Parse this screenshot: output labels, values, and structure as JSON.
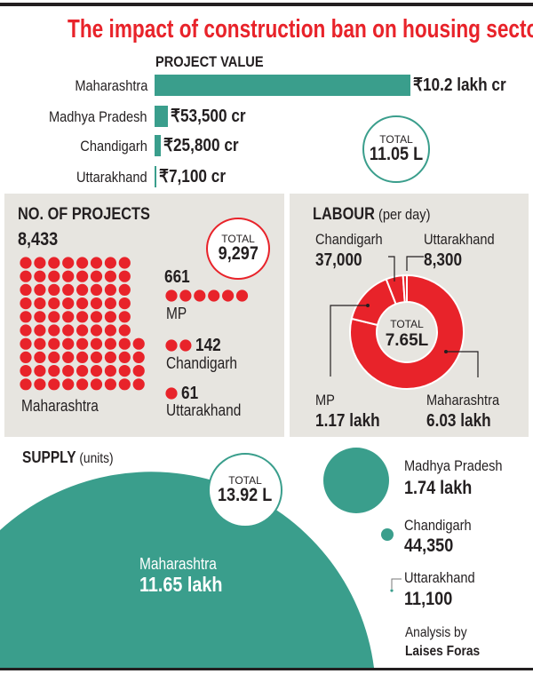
{
  "title": "The impact of construction ban on housing sector",
  "colors": {
    "title_red": "#e8232a",
    "teal": "#3a9e8c",
    "dot_red": "#e8232a",
    "panel_gray": "#e7e5e0"
  },
  "project_value": {
    "heading": "PROJECT VALUE",
    "rows": [
      {
        "state": "Maharashtra",
        "label": "₹10.2 lakh cr"
      },
      {
        "state": "Madhya Pradesh",
        "label": "₹53,500 cr"
      },
      {
        "state": "Chandigarh",
        "label": "₹25,800 cr"
      },
      {
        "state": "Uttarakhand",
        "label": "₹7,100 cr"
      }
    ],
    "total_label": "TOTAL",
    "total_value": "11.05 L"
  },
  "projects": {
    "heading": "NO. OF PROJECTS",
    "total_label": "TOTAL",
    "total_value": "9,297",
    "maharashtra": {
      "name": "Maharashtra",
      "value": "8,433"
    },
    "mp": {
      "name": "MP",
      "value": "661"
    },
    "chandigarh": {
      "name": "Chandigarh",
      "value": "142"
    },
    "uttarakhand": {
      "name": "Uttarakhand",
      "value": "61"
    }
  },
  "labour": {
    "heading": "LABOUR",
    "unit": "(per day)",
    "total_label": "TOTAL",
    "total_value": "7.65L",
    "chandigarh": {
      "name": "Chandigarh",
      "value": "37,000"
    },
    "uttarakhand": {
      "name": "Uttarakhand",
      "value": "8,300"
    },
    "mp": {
      "name": "MP",
      "value": "1.17 lakh"
    },
    "maharashtra": {
      "name": "Maharashtra",
      "value": "6.03 lakh"
    }
  },
  "supply": {
    "heading": "SUPPLY",
    "unit": "(units)",
    "total_label": "TOTAL",
    "total_value": "13.92 L",
    "maharashtra": {
      "name": "Maharashtra",
      "value": "11.65 lakh"
    },
    "mp": {
      "name": "Madhya Pradesh",
      "value": "1.74 lakh"
    },
    "chandigarh": {
      "name": "Chandigarh",
      "value": "44,350"
    },
    "uttarakhand": {
      "name": "Uttarakhand",
      "value": "11,100"
    }
  },
  "credit": {
    "line1": "Analysis by",
    "line2": "Laises Foras"
  },
  "chart_data": [
    {
      "type": "bar",
      "title": "PROJECT VALUE",
      "categories": [
        "Maharashtra",
        "Madhya Pradesh",
        "Chandigarh",
        "Uttarakhand"
      ],
      "values": [
        1020000,
        53500,
        25800,
        7100
      ],
      "unit": "₹ cr",
      "total": "11.05 L"
    },
    {
      "type": "pictogram",
      "title": "NO. OF PROJECTS",
      "categories": [
        "Maharashtra",
        "MP",
        "Chandigarh",
        "Uttarakhand"
      ],
      "values": [
        8433,
        661,
        142,
        61
      ],
      "total": 9297
    },
    {
      "type": "pie",
      "title": "LABOUR (per day)",
      "categories": [
        "Maharashtra",
        "MP",
        "Chandigarh",
        "Uttarakhand"
      ],
      "values": [
        603000,
        117000,
        37000,
        8300
      ],
      "total": "7.65L"
    },
    {
      "type": "bubble",
      "title": "SUPPLY (units)",
      "categories": [
        "Maharashtra",
        "Madhya Pradesh",
        "Chandigarh",
        "Uttarakhand"
      ],
      "values": [
        1165000,
        174000,
        44350,
        11100
      ],
      "total": "13.92 L"
    }
  ]
}
